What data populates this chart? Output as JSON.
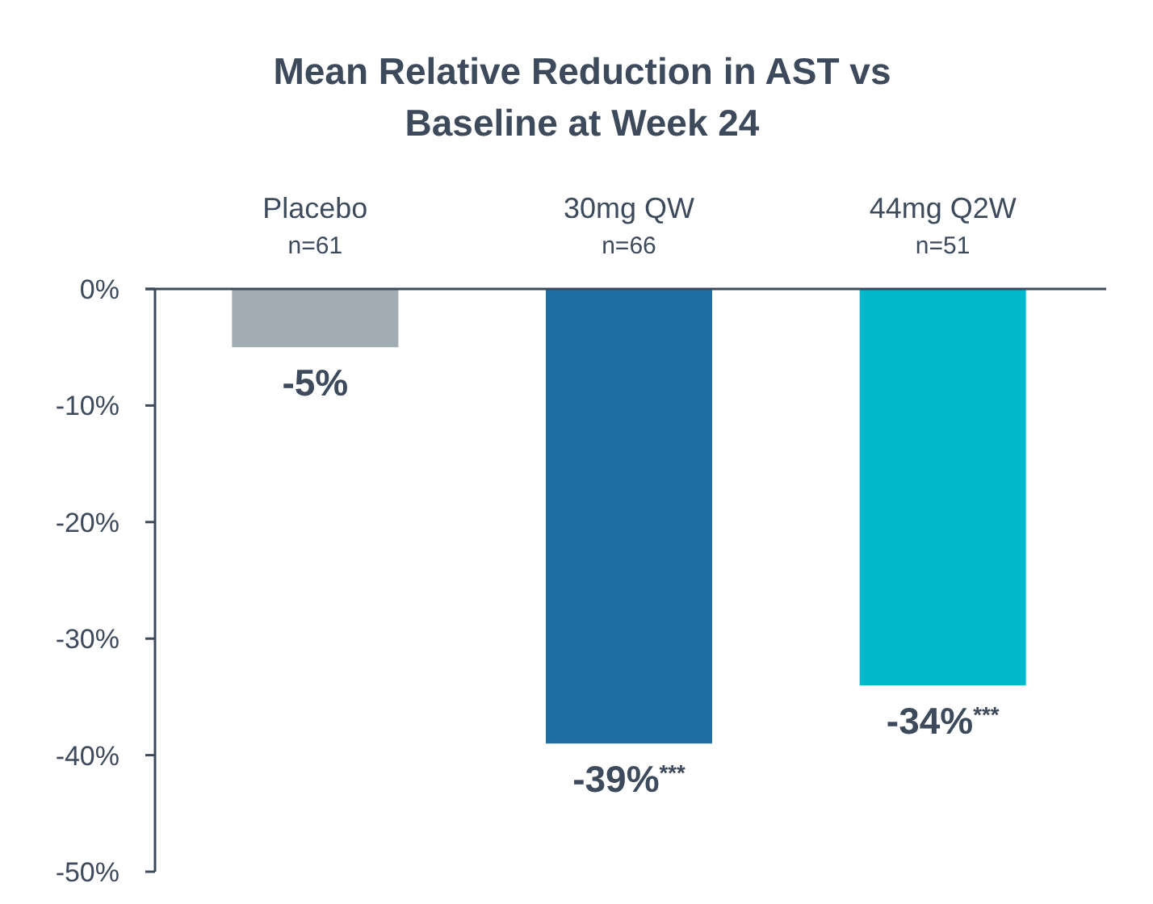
{
  "chart_data": {
    "type": "bar",
    "title": "Mean Relative Reduction in AST vs\nBaseline at Week 24",
    "categories": [
      "Placebo\nn=61",
      "30mg QW\nn=66",
      "44mg Q2W\nn=51"
    ],
    "values": [
      -5,
      -39,
      -34
    ],
    "colors": [
      "#a2acb3",
      "#1f6fa5",
      "#00b9cc"
    ],
    "value_labels": [
      "-5%",
      "-39%$^{***}$",
      "-34%$^{***}$"
    ],
    "ylim": [
      -50,
      0
    ],
    "yticks": [
      {
        "value": 0,
        "label": "0%"
      },
      {
        "value": -10,
        "label": "-10%"
      },
      {
        "value": -20,
        "label": "-20%"
      },
      {
        "value": -30,
        "label": "-30%"
      },
      {
        "value": -40,
        "label": "-40%"
      },
      {
        "value": -50,
        "label": "-50%"
      }
    ],
    "grid": false
  }
}
